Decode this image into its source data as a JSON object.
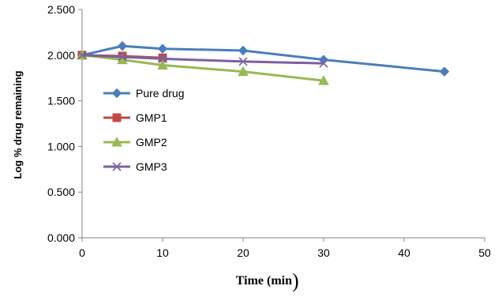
{
  "chart_data": {
    "type": "line",
    "title": "",
    "xlabel": "Time (min",
    "xlabel_trailing": ")",
    "ylabel": "Log % drug remaining",
    "xlim": [
      0,
      50
    ],
    "ylim": [
      0,
      2.5
    ],
    "x_ticks": [
      0,
      10,
      20,
      30,
      40,
      50
    ],
    "x_tick_labels": [
      "0",
      "10",
      "20",
      "30",
      "40",
      "50"
    ],
    "y_ticks": [
      0,
      0.5,
      1.0,
      1.5,
      2.0,
      2.5
    ],
    "y_tick_labels": [
      "0.000",
      "0.500",
      "1.000",
      "1.500",
      "2.000",
      "2.500"
    ],
    "grid": false,
    "legend_position": "center-left",
    "series": [
      {
        "name": "Pure drug",
        "color": "#4a7ebb",
        "marker": "diamond",
        "x": [
          0,
          5,
          10,
          20,
          30,
          45
        ],
        "y": [
          2.0,
          2.1,
          2.07,
          2.05,
          1.95,
          1.82
        ]
      },
      {
        "name": "GMP1",
        "color": "#be4b48",
        "marker": "square",
        "x": [
          0,
          5,
          10
        ],
        "y": [
          2.0,
          1.99,
          1.97
        ]
      },
      {
        "name": "GMP2",
        "color": "#98b954",
        "marker": "triangle",
        "x": [
          0,
          5,
          10,
          20,
          30
        ],
        "y": [
          2.0,
          1.95,
          1.89,
          1.82,
          1.72
        ]
      },
      {
        "name": "GMP3",
        "color": "#7d60a0",
        "marker": "x",
        "x": [
          0,
          5,
          10,
          20,
          30
        ],
        "y": [
          2.0,
          1.98,
          1.96,
          1.93,
          1.91
        ]
      }
    ]
  }
}
